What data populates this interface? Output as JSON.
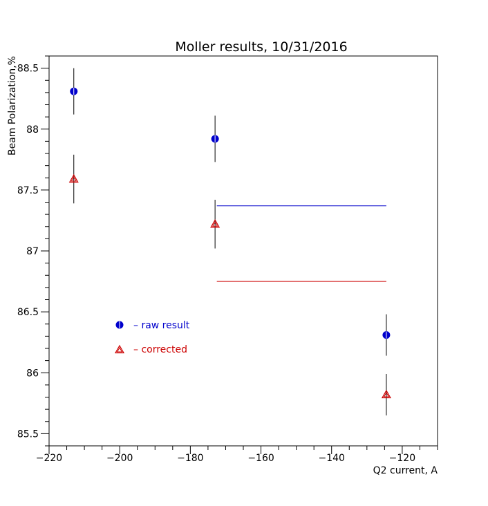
{
  "chart_data": {
    "type": "scatter",
    "title": "Moller results, 10/31/2016",
    "xlabel": "Q2 current, A",
    "ylabel": "Beam Polarization,%",
    "xlim": [
      -220,
      -110
    ],
    "ylim": [
      85.4,
      88.6
    ],
    "x_ticks": [
      -220,
      -200,
      -180,
      -160,
      -140,
      -120
    ],
    "x_tick_labels": [
      "−220",
      "−200",
      "−180",
      "−160",
      "−140",
      "−120"
    ],
    "y_ticks": [
      85.5,
      86,
      86.5,
      87,
      87.5,
      88,
      88.5
    ],
    "y_tick_labels": [
      "85.5",
      "86",
      "86.5",
      "87",
      "87.5",
      "88",
      "88.5"
    ],
    "grid": false,
    "series": [
      {
        "name": "raw result",
        "legend_label": "– raw result",
        "marker": "circle",
        "color": "#0000cc",
        "x": [
          -213,
          -173,
          -124.5
        ],
        "y": [
          88.31,
          87.92,
          86.31
        ],
        "err": [
          0.19,
          0.19,
          0.17
        ]
      },
      {
        "name": "corrected",
        "legend_label": "– corrected",
        "marker": "triangle",
        "color": "#cc0000",
        "x": [
          -213,
          -173,
          -124.5
        ],
        "y": [
          87.59,
          87.22,
          85.82
        ],
        "err": [
          0.2,
          0.2,
          0.17
        ]
      }
    ],
    "reference_lines": [
      {
        "x_start": -172.5,
        "x_end": -124.5,
        "y": 87.37,
        "color": "#0000cc"
      },
      {
        "x_start": -172.5,
        "x_end": -124.5,
        "y": 86.75,
        "color": "#cc0000"
      }
    ]
  }
}
